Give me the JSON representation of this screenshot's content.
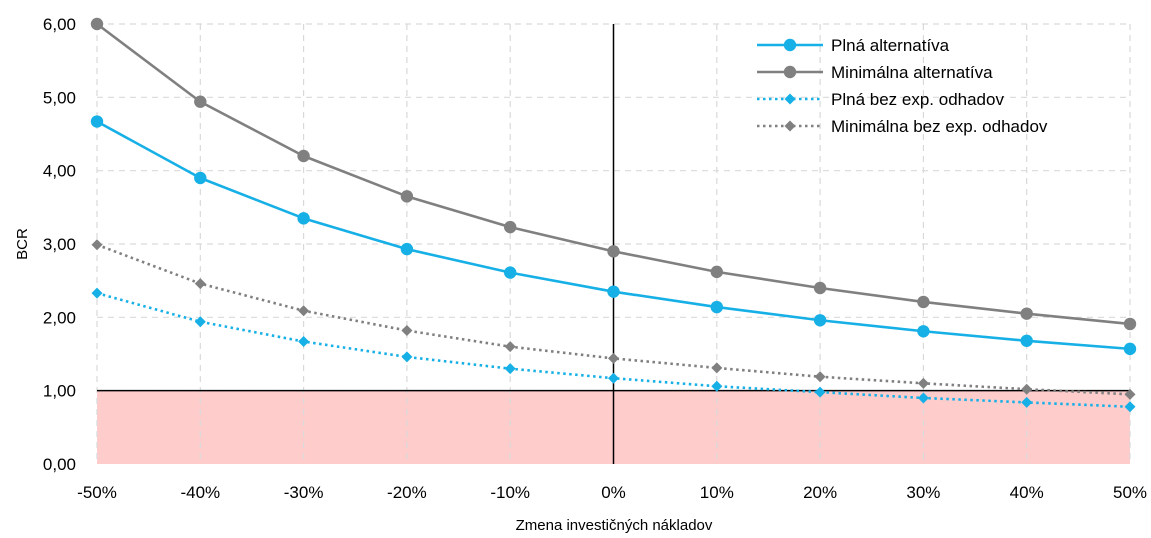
{
  "chart_data": {
    "type": "line",
    "title": "",
    "xlabel": "Zmena investičných nákladov",
    "ylabel": "BCR",
    "categories": [
      "-50%",
      "-40%",
      "-30%",
      "-20%",
      "-10%",
      "0%",
      "10%",
      "20%",
      "30%",
      "40%",
      "50%"
    ],
    "x": [
      -50,
      -40,
      -30,
      -20,
      -10,
      0,
      10,
      20,
      30,
      40,
      50
    ],
    "ylim": [
      0,
      6
    ],
    "yticks": [
      "0,00",
      "1,00",
      "2,00",
      "3,00",
      "4,00",
      "5,00",
      "6,00"
    ],
    "grid": true,
    "legend_position": "top-right",
    "threshold": {
      "value": 1.0,
      "shade_color": "#ffcccc"
    },
    "series": [
      {
        "name": "Plná alternatíva",
        "color": "#17b0e6",
        "style": "solid",
        "marker": "circle",
        "values": [
          4.67,
          3.9,
          3.35,
          2.93,
          2.61,
          2.35,
          2.14,
          1.96,
          1.81,
          1.68,
          1.57
        ]
      },
      {
        "name": "Minimálna alternatíva",
        "color": "#808080",
        "style": "solid",
        "marker": "circle",
        "values": [
          6.0,
          4.94,
          4.2,
          3.65,
          3.23,
          2.9,
          2.62,
          2.4,
          2.21,
          2.05,
          1.91
        ]
      },
      {
        "name": "Plná bez exp. odhadov",
        "color": "#17b0e6",
        "style": "dotted",
        "marker": "diamond",
        "values": [
          2.33,
          1.94,
          1.67,
          1.46,
          1.3,
          1.17,
          1.06,
          0.98,
          0.9,
          0.84,
          0.78
        ]
      },
      {
        "name": "Minimálna bez exp. odhadov",
        "color": "#808080",
        "style": "dotted",
        "marker": "diamond",
        "values": [
          2.99,
          2.46,
          2.09,
          1.82,
          1.6,
          1.44,
          1.31,
          1.19,
          1.1,
          1.02,
          0.95
        ]
      }
    ]
  }
}
